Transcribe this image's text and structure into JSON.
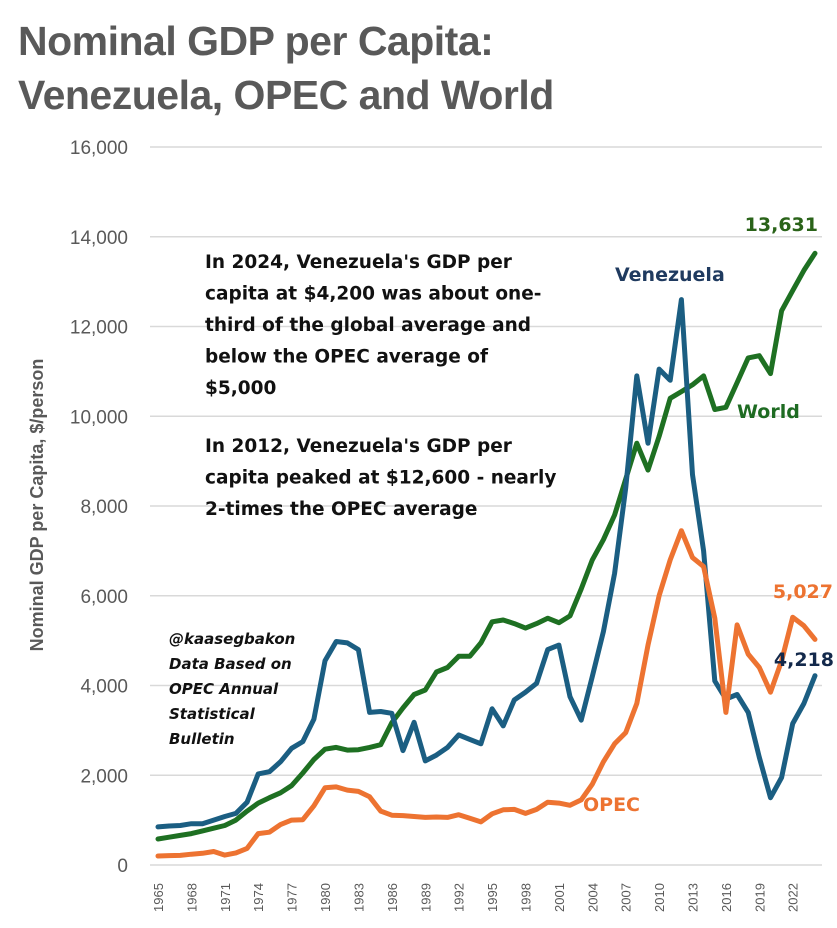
{
  "title_lines": [
    "Nominal GDP per Capita:",
    "Venezuela, OPEC and World"
  ],
  "chart_data": {
    "type": "line",
    "title": "Nominal GDP per Capita: Venezuela, OPEC and World",
    "xlabel": "",
    "ylabel": "Nominal GDP per Capita, $/person",
    "ylim": [
      0,
      16000
    ],
    "yticks": [
      0,
      2000,
      4000,
      6000,
      8000,
      10000,
      12000,
      14000,
      16000
    ],
    "ytick_labels": [
      "0",
      "2,000",
      "4,000",
      "6,000",
      "8,000",
      "10,000",
      "12,000",
      "14,000",
      "16,000"
    ],
    "xlim": [
      1965,
      2024
    ],
    "xtick_labels": [
      "1965",
      "1968",
      "1971",
      "1974",
      "1977",
      "1980",
      "1983",
      "1986",
      "1989",
      "1992",
      "1995",
      "1998",
      "2001",
      "2004",
      "2007",
      "2010",
      "2013",
      "2016",
      "2019",
      "2022"
    ],
    "grid": "horizontal",
    "legend": "none (direct labels)",
    "x": [
      1965,
      1966,
      1967,
      1968,
      1969,
      1970,
      1971,
      1972,
      1973,
      1974,
      1975,
      1976,
      1977,
      1978,
      1979,
      1980,
      1981,
      1982,
      1983,
      1984,
      1985,
      1986,
      1987,
      1988,
      1989,
      1990,
      1991,
      1992,
      1993,
      1994,
      1995,
      1996,
      1997,
      1998,
      1999,
      2000,
      2001,
      2002,
      2003,
      2004,
      2005,
      2006,
      2007,
      2008,
      2009,
      2010,
      2011,
      2012,
      2013,
      2014,
      2015,
      2016,
      2017,
      2018,
      2019,
      2020,
      2021,
      2022,
      2023,
      2024
    ],
    "series": [
      {
        "name": "Venezuela",
        "color": "#1b5e82",
        "label_color": "#1f3a5f",
        "end_label": "4,218",
        "end_label_color": "#13294b",
        "values": [
          850,
          870,
          880,
          920,
          920,
          1000,
          1080,
          1150,
          1400,
          2030,
          2080,
          2300,
          2600,
          2750,
          3250,
          4550,
          4980,
          4950,
          4800,
          3400,
          3420,
          3380,
          2550,
          3180,
          2320,
          2450,
          2620,
          2900,
          2800,
          2700,
          3480,
          3100,
          3680,
          3850,
          4050,
          4800,
          4900,
          3750,
          3230,
          4200,
          5200,
          6500,
          8400,
          10900,
          9400,
          11050,
          10800,
          12600,
          8700,
          7000,
          4100,
          3700,
          3800,
          3400,
          2400,
          1500,
          1950,
          3150,
          3600,
          4218
        ]
      },
      {
        "name": "World",
        "color": "#1e7022",
        "label_color": "#1e6b22",
        "end_label": "13,631",
        "end_label_color": "#2a6319",
        "values": [
          580,
          620,
          660,
          700,
          760,
          820,
          880,
          1000,
          1200,
          1380,
          1500,
          1610,
          1770,
          2050,
          2350,
          2580,
          2620,
          2560,
          2570,
          2620,
          2680,
          3170,
          3500,
          3800,
          3900,
          4300,
          4400,
          4650,
          4650,
          4950,
          5420,
          5460,
          5380,
          5280,
          5380,
          5500,
          5400,
          5550,
          6150,
          6800,
          7250,
          7800,
          8600,
          9400,
          8800,
          9550,
          10400,
          10550,
          10700,
          10900,
          10150,
          10200,
          10750,
          11300,
          11350,
          10950,
          12350,
          12800,
          13250,
          13631
        ]
      },
      {
        "name": "OPEC",
        "color": "#ed7331",
        "label_color": "#ed7331",
        "end_label": "5,027",
        "end_label_color": "#ed7331",
        "values": [
          200,
          210,
          215,
          240,
          260,
          300,
          220,
          270,
          370,
          700,
          730,
          900,
          1000,
          1010,
          1320,
          1720,
          1740,
          1670,
          1640,
          1520,
          1200,
          1110,
          1100,
          1080,
          1060,
          1070,
          1060,
          1120,
          1040,
          960,
          1140,
          1230,
          1240,
          1150,
          1240,
          1400,
          1380,
          1330,
          1450,
          1800,
          2300,
          2700,
          2950,
          3600,
          4900,
          6000,
          6800,
          7450,
          6850,
          6650,
          5500,
          3400,
          5350,
          4700,
          4400,
          3850,
          4550,
          5520,
          5330,
          5027
        ]
      }
    ],
    "annotations": {
      "note_2024": [
        "In 2024, Venezuela's GDP per",
        "capita at $4,200 was about one-",
        "third of the global average and",
        "below the OPEC average of",
        "$5,000"
      ],
      "note_2012": [
        "In 2012, Venezuela's GDP per",
        "capita peaked at $12,600 - nearly",
        "2-times the OPEC average"
      ],
      "credit": [
        "@kaasegbakon",
        "Data Based on",
        "OPEC Annual",
        "Statistical",
        "Bulletin"
      ]
    }
  }
}
